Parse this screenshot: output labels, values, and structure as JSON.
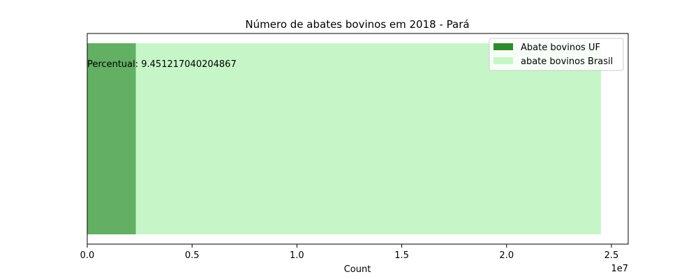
{
  "chart_data": {
    "type": "bar",
    "orientation": "horizontal",
    "title": "Número de abates bovinos em 2018 - Pará",
    "xlabel": "Count",
    "ylabel": "",
    "x_offset_label": "1e7",
    "xlim": [
      0,
      25800000
    ],
    "x_ticks": [
      0,
      5000000,
      10000000,
      15000000,
      20000000,
      25000000
    ],
    "x_tick_labels": [
      "0.0",
      "0.5",
      "1.0",
      "1.5",
      "2.0",
      "2.5"
    ],
    "grid": false,
    "legend_position": "top-right",
    "series": [
      {
        "name": "abate bovinos Brasil",
        "value": 24500000,
        "color": "#c6f6c8",
        "opacity": 1.0
      },
      {
        "name": "Abate bovinos UF",
        "value": 2316000,
        "color": "#2e8b2e",
        "opacity": 0.65
      }
    ],
    "legend": [
      {
        "label": "Abate bovinos UF",
        "color": "#2e8b2e"
      },
      {
        "label": "abate bovinos Brasil",
        "color": "#c6f6c8"
      }
    ],
    "annotation": "Percentual: 9.451217040204867"
  }
}
